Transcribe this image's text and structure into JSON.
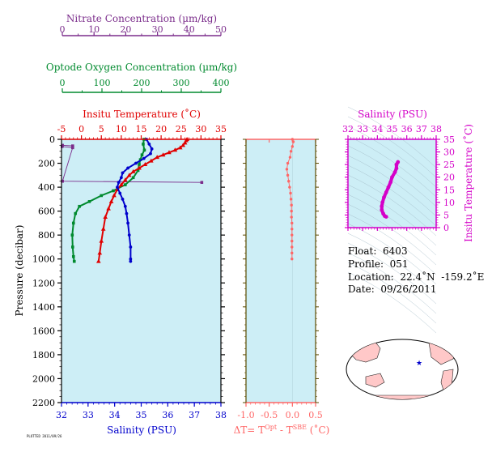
{
  "colors": {
    "nitrate": "#7b2d8b",
    "oxygen": "#008a2e",
    "temperature": "#e00000",
    "salinity": "#0000cc",
    "delta_t": "#ff6666",
    "inset_salinity": "#d400c8",
    "panel_bg": "#cdeef6",
    "land": "#ffc8c8"
  },
  "axes": {
    "nitrate": {
      "label": "Nitrate Concentration (µm/kg)",
      "ticks": [
        "0",
        "10",
        "20",
        "30",
        "40",
        "50"
      ]
    },
    "oxygen": {
      "label": "Optode Oxygen Concentration (µm/kg)",
      "ticks": [
        "0",
        "100",
        "200",
        "300",
        "400"
      ]
    },
    "temperature": {
      "label": "Insitu Temperature (˚C)",
      "ticks": [
        "-5",
        "0",
        "5",
        "10",
        "15",
        "20",
        "25",
        "30",
        "35"
      ]
    },
    "pressure": {
      "label": "Pressure (decibar)",
      "ticks": [
        "0",
        "200",
        "400",
        "600",
        "800",
        "1000",
        "1200",
        "1400",
        "1600",
        "1800",
        "2000",
        "2200"
      ]
    },
    "salinity": {
      "label": "Salinity (PSU)",
      "ticks": [
        "32",
        "33",
        "34",
        "35",
        "36",
        "37",
        "38"
      ]
    },
    "delta_t": {
      "label_main": "ΔT= T",
      "label_sup1": "Opt",
      "label_mid": " - T",
      "label_sup2": "SBE",
      "label_end": " (˚C)",
      "ticks": [
        "-1.0",
        "-0.5",
        "0.0",
        "0.5"
      ]
    },
    "inset_salinity": {
      "label": "Salinity (PSU)",
      "ticks": [
        "32",
        "33",
        "34",
        "35",
        "36",
        "37",
        "38"
      ]
    },
    "inset_temperature": {
      "label": "Insitu Temperature (˚C)",
      "ticks": [
        "0",
        "5",
        "10",
        "15",
        "20",
        "25",
        "30",
        "35"
      ]
    }
  },
  "info": {
    "float": "Float:  6403",
    "profile": "Profile:  051",
    "location": "Location:  22.4˚N  -159.2˚E",
    "date": "Date:  09/26/2011"
  },
  "stamp": "PLOTTED 2011/09/26",
  "chart_data": [
    {
      "type": "line",
      "name": "Insitu Temperature",
      "x_unit": "deg C",
      "y_unit": "decibar",
      "xlim": [
        -5,
        35
      ],
      "ylim": [
        2200,
        0
      ],
      "points": [
        [
          26.5,
          0
        ],
        [
          26.3,
          10
        ],
        [
          26.0,
          30
        ],
        [
          25.5,
          50
        ],
        [
          24.8,
          70
        ],
        [
          23.5,
          90
        ],
        [
          22.0,
          110
        ],
        [
          20.5,
          130
        ],
        [
          19.0,
          150
        ],
        [
          17.5,
          180
        ],
        [
          16.0,
          210
        ],
        [
          14.5,
          240
        ],
        [
          13.0,
          270
        ],
        [
          12.0,
          300
        ],
        [
          11.0,
          340
        ],
        [
          10.0,
          380
        ],
        [
          9.0,
          420
        ],
        [
          8.2,
          470
        ],
        [
          7.5,
          520
        ],
        [
          6.8,
          580
        ],
        [
          6.0,
          650
        ],
        [
          5.5,
          750
        ],
        [
          5.0,
          850
        ],
        [
          4.6,
          950
        ],
        [
          4.3,
          1020
        ]
      ]
    },
    {
      "type": "line",
      "name": "Salinity",
      "x_unit": "PSU",
      "y_unit": "decibar",
      "xlim": [
        32,
        38
      ],
      "ylim": [
        2200,
        0
      ],
      "points": [
        [
          35.2,
          0
        ],
        [
          35.3,
          40
        ],
        [
          35.4,
          80
        ],
        [
          35.35,
          120
        ],
        [
          35.1,
          160
        ],
        [
          34.8,
          200
        ],
        [
          34.5,
          240
        ],
        [
          34.3,
          280
        ],
        [
          34.25,
          320
        ],
        [
          34.15,
          360
        ],
        [
          34.1,
          400
        ],
        [
          34.2,
          450
        ],
        [
          34.3,
          500
        ],
        [
          34.4,
          560
        ],
        [
          34.45,
          620
        ],
        [
          34.5,
          700
        ],
        [
          34.55,
          800
        ],
        [
          34.6,
          900
        ],
        [
          34.6,
          1000
        ],
        [
          34.6,
          1020
        ]
      ]
    },
    {
      "type": "line",
      "name": "Optode Oxygen Concentration",
      "x_unit": "umol/kg",
      "y_unit": "decibar",
      "xlim": [
        0,
        400
      ],
      "ylim": [
        2200,
        0
      ],
      "points": [
        [
          207,
          0
        ],
        [
          205,
          40
        ],
        [
          208,
          90
        ],
        [
          202,
          130
        ],
        [
          198,
          170
        ],
        [
          195,
          210
        ],
        [
          192,
          260
        ],
        [
          180,
          320
        ],
        [
          160,
          380
        ],
        [
          130,
          430
        ],
        [
          100,
          470
        ],
        [
          70,
          520
        ],
        [
          45,
          560
        ],
        [
          35,
          620
        ],
        [
          30,
          700
        ],
        [
          27,
          800
        ],
        [
          28,
          900
        ],
        [
          30,
          980
        ],
        [
          32,
          1020
        ]
      ]
    },
    {
      "type": "line",
      "name": "Nitrate Concentration",
      "x_unit": "umol/kg",
      "y_unit": "decibar",
      "xlim": [
        0,
        50
      ],
      "ylim": [
        2200,
        0
      ],
      "points": [
        [
          3.5,
          55
        ],
        [
          0.3,
          50
        ],
        [
          0.2,
          60
        ],
        [
          3.5,
          70
        ],
        [
          0.3,
          350
        ],
        [
          44,
          360
        ]
      ]
    },
    {
      "type": "line",
      "name": "Delta T",
      "x_unit": "deg C",
      "y_unit": "decibar",
      "xlim": [
        -1.0,
        0.5
      ],
      "ylim": [
        2200,
        0
      ],
      "points": [
        [
          0.0,
          0
        ],
        [
          0.02,
          20
        ],
        [
          0.0,
          60
        ],
        [
          -0.03,
          100
        ],
        [
          -0.05,
          150
        ],
        [
          -0.1,
          200
        ],
        [
          -0.12,
          250
        ],
        [
          -0.1,
          300
        ],
        [
          -0.08,
          350
        ],
        [
          -0.06,
          400
        ],
        [
          -0.04,
          450
        ],
        [
          -0.03,
          500
        ],
        [
          -0.02,
          550
        ],
        [
          -0.02,
          600
        ],
        [
          -0.02,
          650
        ],
        [
          -0.01,
          700
        ],
        [
          -0.01,
          750
        ],
        [
          -0.01,
          800
        ],
        [
          -0.01,
          850
        ],
        [
          -0.01,
          900
        ],
        [
          -0.01,
          950
        ],
        [
          -0.01,
          1000
        ]
      ]
    },
    {
      "type": "line",
      "name": "T-S diagram",
      "x_unit": "PSU",
      "y_unit": "deg C",
      "xlim": [
        32,
        38
      ],
      "ylim": [
        0,
        35
      ],
      "points": [
        [
          35.4,
          26.0
        ],
        [
          35.3,
          25.0
        ],
        [
          35.3,
          23.5
        ],
        [
          35.2,
          22.0
        ],
        [
          35.0,
          20.0
        ],
        [
          34.9,
          18.0
        ],
        [
          34.75,
          16.0
        ],
        [
          34.6,
          14.0
        ],
        [
          34.45,
          12.0
        ],
        [
          34.35,
          10.0
        ],
        [
          34.3,
          8.5
        ],
        [
          34.3,
          7.0
        ],
        [
          34.4,
          5.5
        ],
        [
          34.5,
          4.6
        ],
        [
          34.6,
          4.3
        ]
      ]
    },
    {
      "type": "scatter",
      "name": "Float location",
      "x_unit": "deg E",
      "y_unit": "deg N",
      "points": [
        [
          -159.2,
          22.4
        ]
      ]
    }
  ]
}
